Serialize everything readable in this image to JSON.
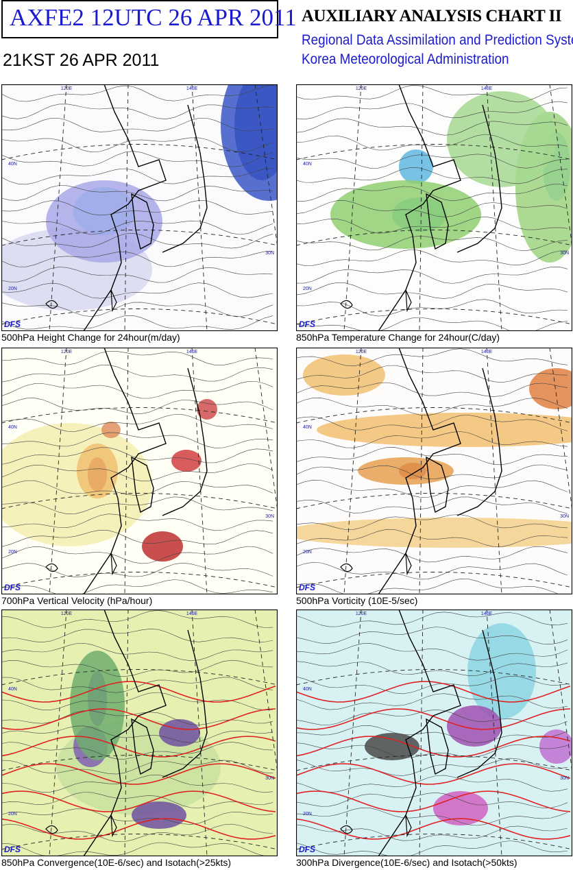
{
  "header": {
    "code_box": "AXFE2  12UTC 26 APR 2011",
    "chart_title": "AUXILIARY ANALYSIS CHART II",
    "system": "Regional Data Assimilation and Prediction System",
    "agency": "Korea Meteorological Administration",
    "local_time": "21KST 26 APR 2011"
  },
  "panels": [
    {
      "caption": "500hPa Height Change for 24hour(m/day)",
      "logo": "DFS",
      "grid_labels": [
        "120E",
        "140E",
        "40N",
        "30N",
        "20N"
      ]
    },
    {
      "caption": "850hPa Temperature Change for 24hour(C/day)",
      "logo": "DFS",
      "grid_labels": [
        "120E",
        "140E",
        "40N",
        "30N",
        "20N"
      ]
    },
    {
      "caption": "700hPa Vertical Velocity (hPa/hour)",
      "logo": "DFS",
      "grid_labels": [
        "120E",
        "140E",
        "40N",
        "30N",
        "20N"
      ]
    },
    {
      "caption": "500hPa Vorticity (10E-5/sec)",
      "logo": "DFS",
      "grid_labels": [
        "120E",
        "140E",
        "40N",
        "30N",
        "20N"
      ]
    },
    {
      "caption": "850hPa Convergence(10E-6/sec) and Isotach(>25kts)",
      "logo": "DFS",
      "grid_labels": [
        "120E",
        "140E",
        "40N",
        "30N",
        "20N"
      ]
    },
    {
      "caption": "300hPa Divergence(10E-6/sec) and Isotach(>50kts)",
      "logo": "DFS",
      "grid_labels": [
        "120E",
        "140E",
        "40N",
        "30N",
        "20N"
      ]
    }
  ]
}
